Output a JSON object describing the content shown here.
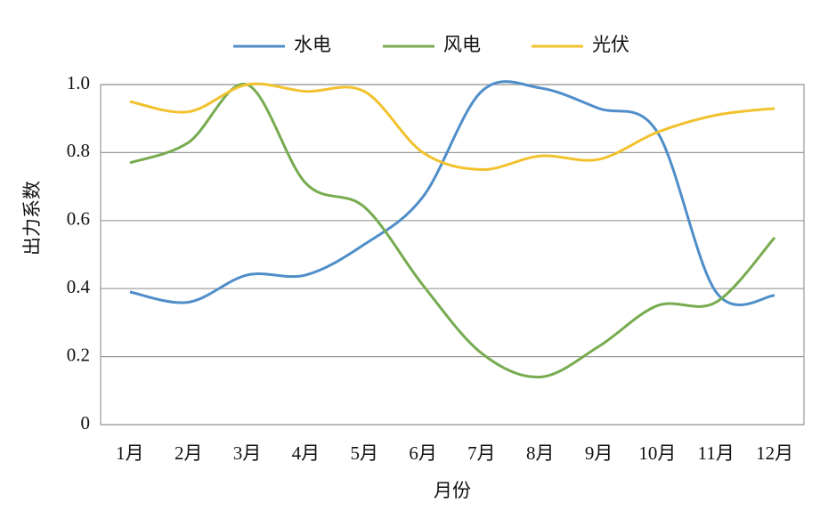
{
  "chart_data": {
    "type": "line",
    "x_label": "月份",
    "y_label": "出力系数",
    "categories": [
      "1月",
      "2月",
      "3月",
      "4月",
      "5月",
      "6月",
      "7月",
      "8月",
      "9月",
      "10月",
      "11月",
      "12月"
    ],
    "series": [
      {
        "name": "水电",
        "color": "#4f8ec9",
        "values": [
          0.39,
          0.36,
          0.44,
          0.44,
          0.53,
          0.67,
          0.98,
          0.99,
          0.93,
          0.86,
          0.39,
          0.38
        ]
      },
      {
        "name": "风电",
        "color": "#76ab4f",
        "values": [
          0.77,
          0.83,
          1.0,
          0.71,
          0.64,
          0.41,
          0.21,
          0.14,
          0.23,
          0.35,
          0.36,
          0.55
        ]
      },
      {
        "name": "光伏",
        "color": "#f2c12e",
        "values": [
          0.95,
          0.92,
          1.0,
          0.98,
          0.98,
          0.8,
          0.75,
          0.79,
          0.78,
          0.86,
          0.91,
          0.93
        ]
      }
    ],
    "ylim": [
      0,
      1
    ],
    "yticks": [
      0,
      0.2,
      0.4,
      0.6,
      0.8,
      {
        "value": 1,
        "label": "1.0"
      }
    ],
    "grid": true,
    "legend": "top"
  }
}
